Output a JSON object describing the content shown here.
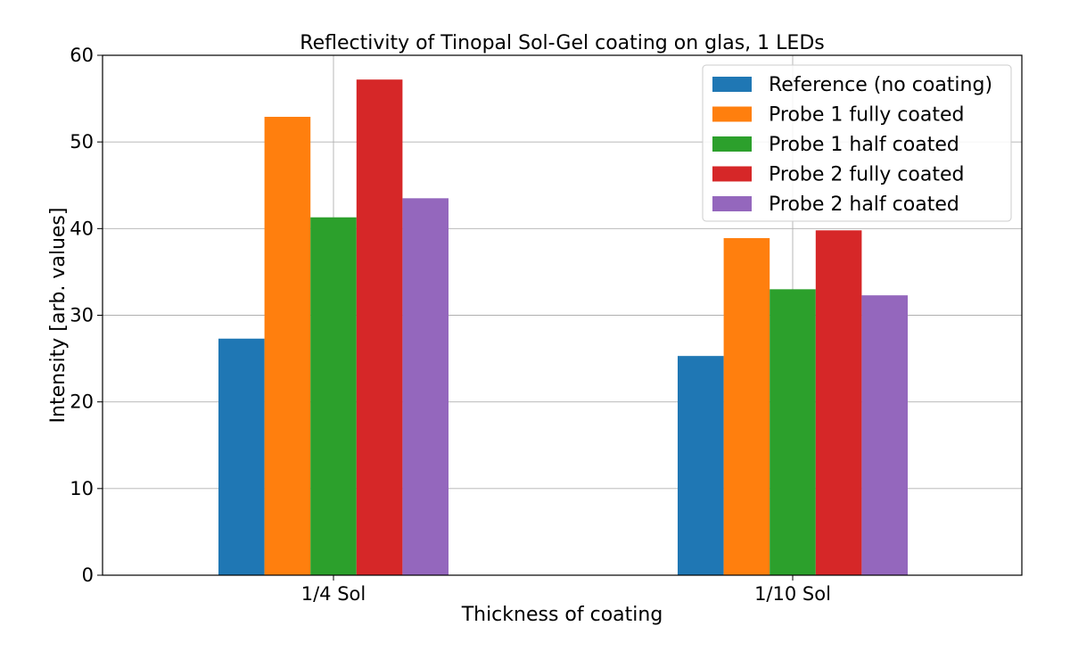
{
  "chart_data": {
    "type": "bar",
    "title": "Reflectivity of Tinopal Sol-Gel coating on glas, 1 LEDs",
    "xlabel": "Thickness of coating",
    "ylabel": "Intensity [arb. values]",
    "categories": [
      "1/4 Sol",
      "1/10 Sol"
    ],
    "ylim": [
      0,
      60
    ],
    "yticks": [
      0,
      10,
      20,
      30,
      40,
      50,
      60
    ],
    "grid": true,
    "legend_position": "top-right",
    "series": [
      {
        "name": "Reference (no coating)",
        "color": "#1f77b4",
        "values": [
          27.3,
          25.3
        ]
      },
      {
        "name": "Probe 1 fully coated",
        "color": "#ff7f0e",
        "values": [
          52.9,
          38.9
        ]
      },
      {
        "name": "Probe 1 half coated",
        "color": "#2ca02c",
        "values": [
          41.3,
          33.0
        ]
      },
      {
        "name": "Probe 2 fully coated",
        "color": "#d62728",
        "values": [
          57.2,
          39.8
        ]
      },
      {
        "name": "Probe 2 half coated",
        "color": "#9467bd",
        "values": [
          43.5,
          32.3
        ]
      }
    ]
  }
}
